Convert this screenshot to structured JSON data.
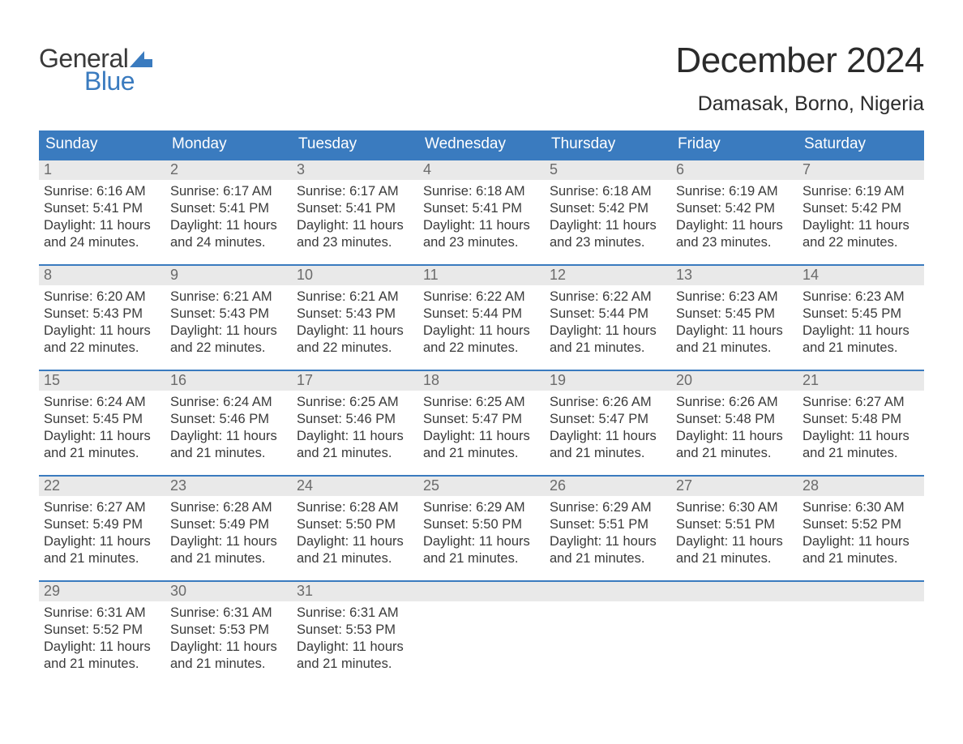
{
  "logo": {
    "word1": "General",
    "word2": "Blue",
    "flag_color": "#3a7bbf"
  },
  "title": "December 2024",
  "location": "Damasak, Borno, Nigeria",
  "colors": {
    "header_bg": "#3a7bbf",
    "header_text": "#ffffff",
    "row_divider": "#3a7bbf",
    "daynum_bg": "#e9e9e9",
    "daynum_text": "#6b6b6b",
    "body_text": "#3a3a3a",
    "page_bg": "#ffffff"
  },
  "typography": {
    "title_fontsize": 44,
    "location_fontsize": 25,
    "dow_fontsize": 19,
    "daynum_fontsize": 18,
    "body_fontsize": 16.5,
    "font_family": "Arial"
  },
  "days_of_week": [
    "Sunday",
    "Monday",
    "Tuesday",
    "Wednesday",
    "Thursday",
    "Friday",
    "Saturday"
  ],
  "labels": {
    "sunrise": "Sunrise:",
    "sunset": "Sunset:",
    "daylight": "Daylight:"
  },
  "weeks": [
    [
      {
        "n": "1",
        "sunrise": "6:16 AM",
        "sunset": "5:41 PM",
        "daylight": "11 hours and 24 minutes."
      },
      {
        "n": "2",
        "sunrise": "6:17 AM",
        "sunset": "5:41 PM",
        "daylight": "11 hours and 24 minutes."
      },
      {
        "n": "3",
        "sunrise": "6:17 AM",
        "sunset": "5:41 PM",
        "daylight": "11 hours and 23 minutes."
      },
      {
        "n": "4",
        "sunrise": "6:18 AM",
        "sunset": "5:41 PM",
        "daylight": "11 hours and 23 minutes."
      },
      {
        "n": "5",
        "sunrise": "6:18 AM",
        "sunset": "5:42 PM",
        "daylight": "11 hours and 23 minutes."
      },
      {
        "n": "6",
        "sunrise": "6:19 AM",
        "sunset": "5:42 PM",
        "daylight": "11 hours and 23 minutes."
      },
      {
        "n": "7",
        "sunrise": "6:19 AM",
        "sunset": "5:42 PM",
        "daylight": "11 hours and 22 minutes."
      }
    ],
    [
      {
        "n": "8",
        "sunrise": "6:20 AM",
        "sunset": "5:43 PM",
        "daylight": "11 hours and 22 minutes."
      },
      {
        "n": "9",
        "sunrise": "6:21 AM",
        "sunset": "5:43 PM",
        "daylight": "11 hours and 22 minutes."
      },
      {
        "n": "10",
        "sunrise": "6:21 AM",
        "sunset": "5:43 PM",
        "daylight": "11 hours and 22 minutes."
      },
      {
        "n": "11",
        "sunrise": "6:22 AM",
        "sunset": "5:44 PM",
        "daylight": "11 hours and 22 minutes."
      },
      {
        "n": "12",
        "sunrise": "6:22 AM",
        "sunset": "5:44 PM",
        "daylight": "11 hours and 21 minutes."
      },
      {
        "n": "13",
        "sunrise": "6:23 AM",
        "sunset": "5:45 PM",
        "daylight": "11 hours and 21 minutes."
      },
      {
        "n": "14",
        "sunrise": "6:23 AM",
        "sunset": "5:45 PM",
        "daylight": "11 hours and 21 minutes."
      }
    ],
    [
      {
        "n": "15",
        "sunrise": "6:24 AM",
        "sunset": "5:45 PM",
        "daylight": "11 hours and 21 minutes."
      },
      {
        "n": "16",
        "sunrise": "6:24 AM",
        "sunset": "5:46 PM",
        "daylight": "11 hours and 21 minutes."
      },
      {
        "n": "17",
        "sunrise": "6:25 AM",
        "sunset": "5:46 PM",
        "daylight": "11 hours and 21 minutes."
      },
      {
        "n": "18",
        "sunrise": "6:25 AM",
        "sunset": "5:47 PM",
        "daylight": "11 hours and 21 minutes."
      },
      {
        "n": "19",
        "sunrise": "6:26 AM",
        "sunset": "5:47 PM",
        "daylight": "11 hours and 21 minutes."
      },
      {
        "n": "20",
        "sunrise": "6:26 AM",
        "sunset": "5:48 PM",
        "daylight": "11 hours and 21 minutes."
      },
      {
        "n": "21",
        "sunrise": "6:27 AM",
        "sunset": "5:48 PM",
        "daylight": "11 hours and 21 minutes."
      }
    ],
    [
      {
        "n": "22",
        "sunrise": "6:27 AM",
        "sunset": "5:49 PM",
        "daylight": "11 hours and 21 minutes."
      },
      {
        "n": "23",
        "sunrise": "6:28 AM",
        "sunset": "5:49 PM",
        "daylight": "11 hours and 21 minutes."
      },
      {
        "n": "24",
        "sunrise": "6:28 AM",
        "sunset": "5:50 PM",
        "daylight": "11 hours and 21 minutes."
      },
      {
        "n": "25",
        "sunrise": "6:29 AM",
        "sunset": "5:50 PM",
        "daylight": "11 hours and 21 minutes."
      },
      {
        "n": "26",
        "sunrise": "6:29 AM",
        "sunset": "5:51 PM",
        "daylight": "11 hours and 21 minutes."
      },
      {
        "n": "27",
        "sunrise": "6:30 AM",
        "sunset": "5:51 PM",
        "daylight": "11 hours and 21 minutes."
      },
      {
        "n": "28",
        "sunrise": "6:30 AM",
        "sunset": "5:52 PM",
        "daylight": "11 hours and 21 minutes."
      }
    ],
    [
      {
        "n": "29",
        "sunrise": "6:31 AM",
        "sunset": "5:52 PM",
        "daylight": "11 hours and 21 minutes."
      },
      {
        "n": "30",
        "sunrise": "6:31 AM",
        "sunset": "5:53 PM",
        "daylight": "11 hours and 21 minutes."
      },
      {
        "n": "31",
        "sunrise": "6:31 AM",
        "sunset": "5:53 PM",
        "daylight": "11 hours and 21 minutes."
      },
      {
        "empty": true
      },
      {
        "empty": true
      },
      {
        "empty": true
      },
      {
        "empty": true
      }
    ]
  ]
}
